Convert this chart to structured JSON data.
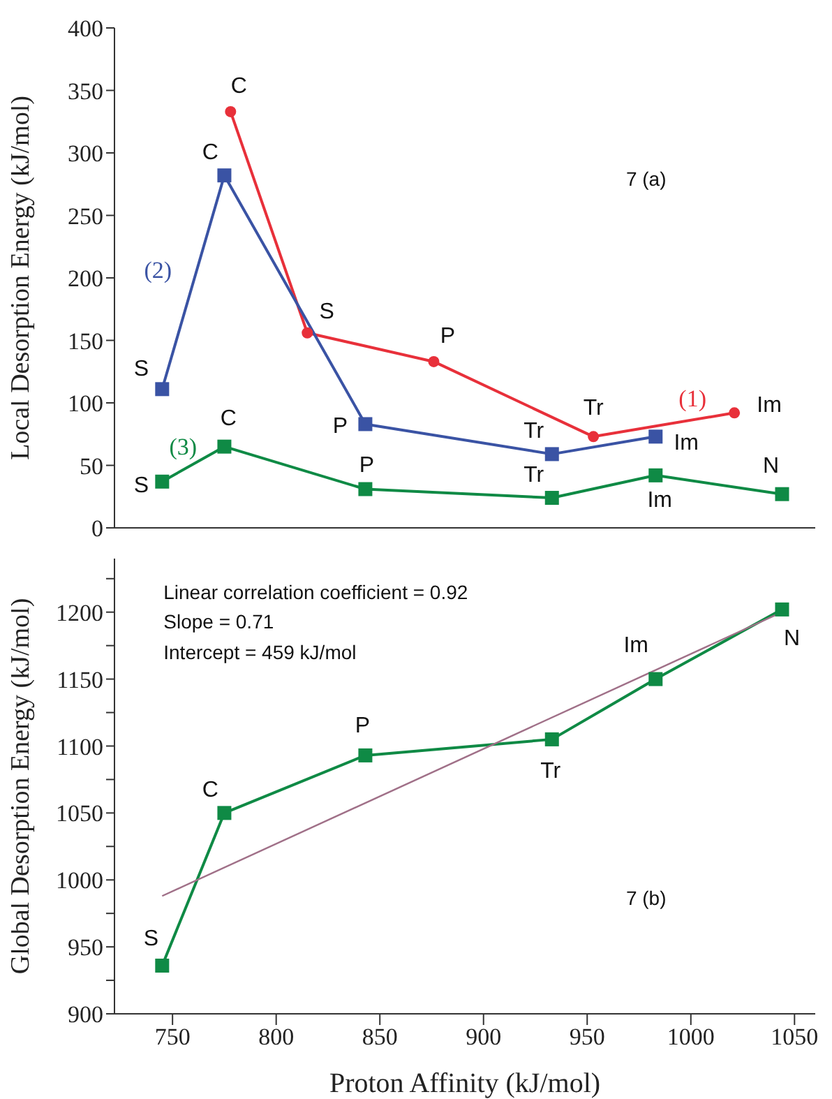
{
  "chart_data": [
    {
      "type": "line",
      "ylabel": "Local Desorption Energy (kJ/mol)",
      "xlim": [
        722,
        1060
      ],
      "xticks": [
        750,
        800,
        850,
        900,
        950,
        1000,
        1050
      ],
      "ylim": [
        0,
        400
      ],
      "yticks": [
        0,
        50,
        100,
        150,
        200,
        250,
        300,
        350,
        400
      ],
      "tick_labels": "y",
      "grid": false,
      "legend": false,
      "line_style": "solid",
      "series": [
        {
          "name": "(1)",
          "color": "#e8303a",
          "marker": "circle",
          "x": [
            778,
            815,
            876,
            953,
            1021
          ],
          "values": [
            333,
            156,
            133,
            73,
            92
          ]
        },
        {
          "name": "(2)",
          "color": "#3a53a4",
          "marker": "square",
          "x": [
            745,
            775,
            843,
            933,
            983
          ],
          "values": [
            111,
            282,
            83,
            59,
            73
          ]
        },
        {
          "name": "(3)",
          "color": "#0f8a45",
          "marker": "square",
          "x": [
            745,
            775,
            843,
            933,
            983,
            1044
          ],
          "values": [
            37,
            65,
            31,
            24,
            42,
            27
          ]
        }
      ],
      "annotations": [
        "7 (a)",
        {
          "text": "C",
          "x": 778,
          "y": 333
        },
        {
          "text": "S",
          "x": 815,
          "y": 156
        },
        {
          "text": "P",
          "x": 876,
          "y": 133
        },
        {
          "text": "Tr",
          "x": 953,
          "y": 73
        },
        {
          "text": "Im",
          "x": 1021,
          "y": 92
        },
        {
          "text": "S",
          "x": 745,
          "y": 111
        },
        {
          "text": "C",
          "x": 775,
          "y": 282
        },
        {
          "text": "P",
          "x": 843,
          "y": 83
        },
        {
          "text": "Tr",
          "x": 933,
          "y": 59
        },
        {
          "text": "Im",
          "x": 983,
          "y": 73
        },
        {
          "text": "S",
          "x": 745,
          "y": 37
        },
        {
          "text": "C",
          "x": 775,
          "y": 65
        },
        {
          "text": "P",
          "x": 843,
          "y": 31
        },
        {
          "text": "Tr",
          "x": 933,
          "y": 24
        },
        {
          "text": "Im",
          "x": 983,
          "y": 42
        },
        {
          "text": "N",
          "x": 1044,
          "y": 27
        }
      ]
    },
    {
      "type": "line",
      "xlabel": "Proton Affinity (kJ/mol)",
      "ylabel": "Global Desorption Energy (kJ/mol)",
      "xlim": [
        722,
        1060
      ],
      "xticks": [
        750,
        800,
        850,
        900,
        950,
        1000,
        1050
      ],
      "ylim": [
        900,
        1240
      ],
      "yticks": [
        900,
        {
          "value": 925,
          "label": null
        },
        950,
        {
          "value": 975,
          "label": null
        },
        1000,
        {
          "value": 1025,
          "label": null
        },
        1050,
        {
          "value": 1075,
          "label": null
        },
        1100,
        {
          "value": 1125,
          "label": null
        },
        1150,
        {
          "value": 1175,
          "label": null
        },
        1200,
        {
          "value": 1225,
          "label": null
        }
      ],
      "grid": false,
      "legend": false,
      "line_style": "solid",
      "series": [
        {
          "color": "#0f8a45",
          "marker": "square",
          "x": [
            745,
            775,
            843,
            933,
            983,
            1044
          ],
          "values": [
            936,
            1050,
            1093,
            1105,
            1150,
            1202
          ]
        },
        {
          "type": "line",
          "color": "#a07088",
          "marker": "none",
          "x": [
            745,
            1044
          ],
          "values": [
            988,
            1200
          ]
        }
      ],
      "annotations": [
        "Linear correlation coefficient = 0.92",
        "Slope = 0.71",
        "Intercept = 459 kJ/mol",
        "7 (b)",
        {
          "text": "S",
          "x": 745,
          "y": 936
        },
        {
          "text": "C",
          "x": 775,
          "y": 1050
        },
        {
          "text": "P",
          "x": 843,
          "y": 1093
        },
        {
          "text": "Tr",
          "x": 933,
          "y": 1105
        },
        {
          "text": "Im",
          "x": 983,
          "y": 1150
        },
        {
          "text": "N",
          "x": 1044,
          "y": 1202
        }
      ]
    }
  ]
}
